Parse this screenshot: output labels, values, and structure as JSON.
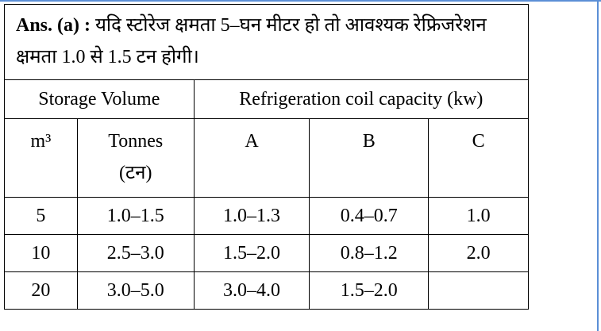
{
  "answer": {
    "label": "Ans. (a) :",
    "text": "यदि स्टोरेज क्षमता 5–घन मीटर हो तो आवश्यक रेफ्रिजरेशन क्षमता 1.0 से 1.5 टन होगी।"
  },
  "table": {
    "group_headers": [
      "Storage Volume",
      "Refrigeration coil capacity (kw)"
    ],
    "headers": [
      "m³",
      "Tonnes",
      "(टन)",
      "A",
      "B",
      "C"
    ],
    "rows": [
      [
        "5",
        "1.0–1.5",
        "1.0–1.3",
        "0.4–0.7",
        "1.0"
      ],
      [
        "10",
        "2.5–3.0",
        "1.5–2.0",
        "0.8–1.2",
        "2.0"
      ],
      [
        "20",
        "3.0–5.0",
        "3.0–4.0",
        "1.5–2.0"
      ]
    ]
  }
}
